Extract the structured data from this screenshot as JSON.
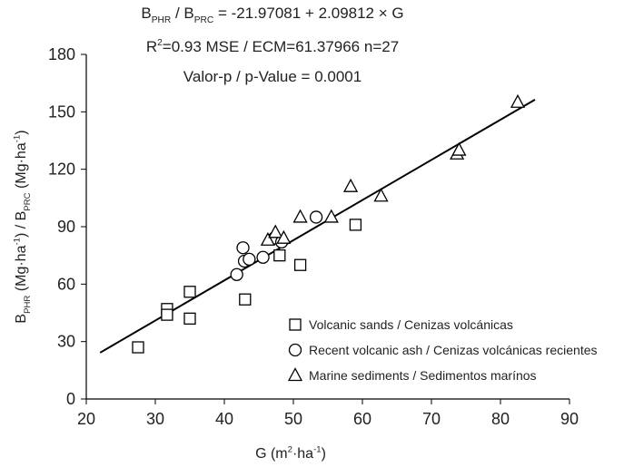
{
  "chart_data": {
    "type": "scatter",
    "annotations": [
      [
        {
          "t": "B"
        },
        {
          "t": "PHR",
          "sub": true
        },
        {
          "t": " / B"
        },
        {
          "t": "PRC",
          "sub": true
        },
        {
          "t": " = -21.97081 + 2.09812 × G"
        }
      ],
      [
        {
          "t": "R"
        },
        {
          "t": "2",
          "sup": true
        },
        {
          "t": "=0.93   MSE / ECM=61.37966   n=27"
        }
      ],
      [
        {
          "t": "Valor-p / p-Value = 0.0001"
        }
      ]
    ],
    "xlabel": [
      {
        "t": "G (m"
      },
      {
        "t": "2",
        "sup": true
      },
      {
        "t": "·ha"
      },
      {
        "t": "-1",
        "sup": true
      },
      {
        "t": ")"
      }
    ],
    "ylabel": [
      {
        "t": "B"
      },
      {
        "t": "PHR",
        "sub": true
      },
      {
        "t": " (Mg·ha"
      },
      {
        "t": "-1",
        "sup": true
      },
      {
        "t": ") / B"
      },
      {
        "t": "PRC",
        "sub": true
      },
      {
        "t": " (Mg·ha"
      },
      {
        "t": "-1",
        "sup": true
      },
      {
        "t": ")"
      }
    ],
    "xlim": [
      20,
      90
    ],
    "xticks": [
      20,
      30,
      40,
      50,
      60,
      70,
      80,
      90
    ],
    "ylim": [
      0,
      180
    ],
    "yticks": [
      0,
      30,
      60,
      90,
      120,
      150,
      180
    ],
    "grid": false,
    "legend": "lower right",
    "fit_line": {
      "x": [
        22,
        85
      ],
      "y": [
        24.19,
        156.37
      ],
      "color": "#000000"
    },
    "series": [
      {
        "name": "Volcanic sands / Cenizas volcánicas",
        "marker": "square",
        "color": "#000000",
        "x": [
          27.5,
          31.7,
          31.7,
          35,
          35,
          43,
          48,
          51,
          59
        ],
        "values": [
          27,
          47,
          44,
          56,
          42,
          52,
          75,
          70,
          91
        ]
      },
      {
        "name": "Recent volcanic ash / Cenizas volcánicas recientes",
        "marker": "circle",
        "color": "#000000",
        "x": [
          42.7,
          42.9,
          43.6,
          41.8,
          45.6,
          47.2,
          48.3,
          53.3
        ],
        "values": [
          79,
          72,
          73,
          65,
          74,
          84,
          82,
          95
        ]
      },
      {
        "name": "Marine sediments / Sedimentos marínos",
        "marker": "triangle",
        "color": "#000000",
        "x": [
          46.3,
          47.4,
          48.6,
          51,
          55.5,
          58.3,
          62.7,
          73.7,
          74,
          82.5
        ],
        "values": [
          83,
          87,
          84,
          95,
          95,
          111,
          106,
          128,
          130,
          155
        ]
      }
    ]
  }
}
